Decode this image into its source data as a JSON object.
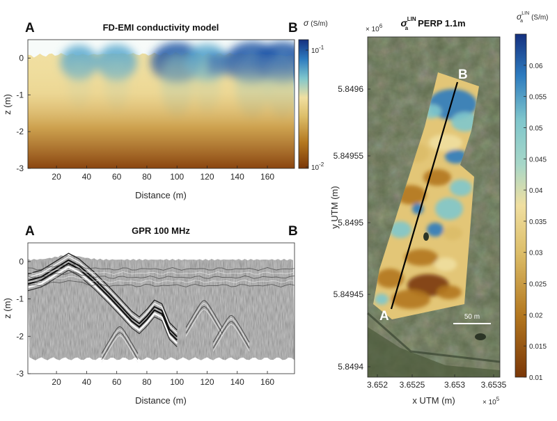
{
  "chart_data": [
    {
      "type": "heatmap",
      "title": "FD-EMI conductivity model",
      "xlabel": "Distance (m)",
      "ylabel": "z (m)",
      "xlim": [
        1,
        178
      ],
      "ylim": [
        -3,
        0.5
      ],
      "x_ticks": [
        "20",
        "40",
        "60",
        "80",
        "100",
        "120",
        "140",
        "160"
      ],
      "y_ticks": [
        "0",
        "-1",
        "-2",
        "-3"
      ],
      "marker_start": "A",
      "marker_end": "B",
      "colorbar": {
        "label_symbol": "σ",
        "label_unit": "(S/m)",
        "scale": "log",
        "range": [
          0.01,
          0.15
        ],
        "tick_top_base": "10",
        "tick_top_exp": "-1",
        "tick_bottom_base": "10",
        "tick_bottom_exp": "-2"
      },
      "colors": [
        "#7a3708",
        "#b3771f",
        "#dcbd68",
        "#f0dfa0",
        "#7fc6cc",
        "#2d7bbf",
        "#15307f"
      ],
      "surface_profile": [
        [
          1,
          0.05
        ],
        [
          20,
          0.1
        ],
        [
          40,
          0.09
        ],
        [
          60,
          0.12
        ],
        [
          80,
          0.1
        ],
        [
          100,
          0.12
        ],
        [
          120,
          0.09
        ],
        [
          140,
          0.11
        ],
        [
          160,
          0.1
        ],
        [
          178,
          0.05
        ]
      ],
      "conductive_zones": [
        [
          35,
          0.4
        ],
        [
          60,
          0.5
        ],
        [
          100,
          0.9
        ],
        [
          120,
          0.6
        ],
        [
          150,
          1.0
        ],
        [
          170,
          1.0
        ]
      ]
    },
    {
      "type": "heatmap",
      "title": "GPR 100 MHz",
      "xlabel": "Distance (m)",
      "ylabel": "z (m)",
      "xlim": [
        1,
        178
      ],
      "ylim": [
        -3,
        0.5
      ],
      "x_ticks": [
        "20",
        "40",
        "60",
        "80",
        "100",
        "120",
        "140",
        "160"
      ],
      "y_ticks": [
        "0",
        "-1",
        "-2",
        "-3"
      ],
      "marker_start": "A",
      "marker_end": "B",
      "reflector": [
        [
          1,
          -0.6
        ],
        [
          10,
          -0.5
        ],
        [
          20,
          -0.25
        ],
        [
          28,
          -0.05
        ],
        [
          35,
          -0.2
        ],
        [
          45,
          -0.55
        ],
        [
          55,
          -0.95
        ],
        [
          62,
          -1.25
        ],
        [
          70,
          -1.6
        ],
        [
          75,
          -1.75
        ],
        [
          80,
          -1.55
        ],
        [
          85,
          -1.3
        ],
        [
          90,
          -1.4
        ],
        [
          95,
          -1.9
        ],
        [
          100,
          -2.1
        ]
      ],
      "bottom_of_section": -2.6
    },
    {
      "type": "heatmap",
      "title_symbol": "σ",
      "title_sub": "a",
      "title_sup": "LIN",
      "title_rest": "PERP 1.1m",
      "xlabel": "x UTM (m)",
      "ylabel": "y UTM (m)",
      "x_ticks": [
        "3.652",
        "3.6525",
        "3.653",
        "3.6535"
      ],
      "x_multiplier_base": "× 10",
      "x_multiplier_exp": "5",
      "y_ticks": [
        "5.8496",
        "5.84955",
        "5.8495",
        "5.84945",
        "5.8494"
      ],
      "y_multiplier_base": "× 10",
      "y_multiplier_exp": "6",
      "profile_start": "A",
      "profile_end": "B",
      "scale_bar_label": "50 m",
      "colorbar": {
        "label_symbol": "σ",
        "label_sub": "a",
        "label_sup": "LIN",
        "label_unit": "(S/m)",
        "range": [
          0.01,
          0.065
        ],
        "ticks": [
          "0.06",
          "0.055",
          "0.05",
          "0.045",
          "0.04",
          "0.035",
          "0.03",
          "0.025",
          "0.02",
          "0.015",
          "0.01"
        ],
        "tick_values": [
          0.06,
          0.055,
          0.05,
          0.045,
          0.04,
          0.035,
          0.03,
          0.025,
          0.02,
          0.015,
          0.01
        ]
      },
      "colors": [
        "#7a3708",
        "#b3771f",
        "#dcbd68",
        "#f0dfa0",
        "#7fc6cc",
        "#2d7bbf",
        "#15307f"
      ]
    }
  ]
}
